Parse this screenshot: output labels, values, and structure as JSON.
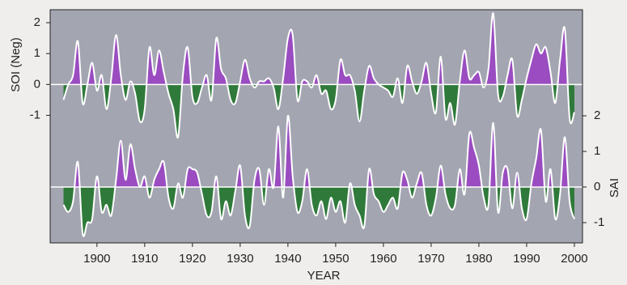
{
  "chart_data": {
    "type": "area",
    "x_label": "YEAR",
    "xlim": [
      1890.2,
      2001.7
    ],
    "xticks": [
      1900,
      1910,
      1920,
      1930,
      1940,
      1950,
      1960,
      1970,
      1980,
      1990,
      2000
    ],
    "ylim": [
      -5.13,
      2.42
    ],
    "yticks": [
      -1,
      0,
      1,
      2
    ],
    "y2lim": [
      -1.57,
      4.98
    ],
    "y2ticks": [
      -1,
      0,
      1,
      2
    ],
    "background": "#a3a6b1",
    "x": [
      1893,
      1894,
      1895,
      1896,
      1897,
      1898,
      1899,
      1900,
      1901,
      1902,
      1903,
      1904,
      1905,
      1906,
      1907,
      1908,
      1909,
      1910,
      1911,
      1912,
      1913,
      1914,
      1915,
      1916,
      1917,
      1918,
      1919,
      1920,
      1921,
      1922,
      1923,
      1924,
      1925,
      1926,
      1927,
      1928,
      1929,
      1930,
      1931,
      1932,
      1933,
      1934,
      1935,
      1936,
      1937,
      1938,
      1939,
      1940,
      1941,
      1942,
      1943,
      1944,
      1945,
      1946,
      1947,
      1948,
      1949,
      1950,
      1951,
      1952,
      1953,
      1954,
      1955,
      1956,
      1957,
      1958,
      1959,
      1960,
      1961,
      1962,
      1963,
      1964,
      1965,
      1966,
      1967,
      1968,
      1969,
      1970,
      1971,
      1972,
      1973,
      1974,
      1975,
      1976,
      1977,
      1978,
      1979,
      1980,
      1981,
      1982,
      1983,
      1984,
      1985,
      1986,
      1987,
      1988,
      1989,
      1990,
      1991,
      1992,
      1993,
      1994,
      1995,
      1996,
      1997,
      1998,
      1999,
      2000
    ],
    "series": [
      {
        "name": "SOI (Neg)",
        "axis": "y",
        "color": "#ffffff",
        "positive_color": "#9a4cc0",
        "negative_color": "#2f7a3a",
        "values": [
          -0.5,
          0,
          0.3,
          1.4,
          -0.6,
          0,
          0.7,
          -0.2,
          0.3,
          -0.8,
          0.2,
          1.6,
          0.3,
          -0.5,
          0.1,
          -0.3,
          -1.2,
          -0.8,
          1.2,
          0.3,
          1.1,
          0.4,
          -0.3,
          -0.8,
          -1.7,
          0.3,
          1.2,
          -0.4,
          -0.6,
          -0.1,
          0.3,
          -0.5,
          1.5,
          0.5,
          0.2,
          -0.5,
          -0.6,
          0.1,
          0.8,
          0.2,
          -0.1,
          0.1,
          0.1,
          0.2,
          -0.1,
          -0.8,
          0.2,
          1.5,
          1.6,
          -0.5,
          0.1,
          0.1,
          -0.1,
          0.3,
          -0.3,
          -0.2,
          -0.8,
          -0.5,
          0.8,
          0.3,
          0.3,
          -0.2,
          -1.2,
          -0.2,
          0.6,
          0.2,
          0,
          -0.1,
          -0.2,
          -0.4,
          0.2,
          -0.6,
          0.6,
          0.1,
          -0.3,
          0.1,
          0.7,
          -0.3,
          -0.9,
          0.9,
          -1.1,
          -0.6,
          -1.3,
          0.1,
          1.1,
          0.2,
          0.3,
          0.4,
          -0.1,
          0.5,
          2.3,
          -0.3,
          -0.4,
          0.3,
          0.8,
          -1.0,
          -0.5,
          0.2,
          0.8,
          1.3,
          1.0,
          1.2,
          0.4,
          -0.6,
          0.8,
          1.8,
          -1.1,
          -0.9
        ]
      },
      {
        "name": "SAI",
        "axis": "y2",
        "color": "#ffffff",
        "positive_color": "#9a4cc0",
        "negative_color": "#2f7a3a",
        "values": [
          -0.5,
          -0.7,
          -0.4,
          0.7,
          -1.3,
          -1.0,
          -0.9,
          0.3,
          -0.7,
          -0.5,
          -0.8,
          0.2,
          1.3,
          0.2,
          1.2,
          0.5,
          0,
          0.3,
          -0.3,
          0.2,
          0.5,
          0.7,
          -0.3,
          -0.6,
          0.1,
          -0.3,
          0.5,
          0.5,
          0.4,
          -0.2,
          -0.8,
          -0.7,
          0.3,
          -0.9,
          -0.4,
          -0.8,
          -0.1,
          0.6,
          -0.8,
          -1.1,
          0.2,
          0.5,
          -0.5,
          0.5,
          0,
          1.7,
          -0.3,
          2.0,
          0.3,
          -0.7,
          -0.4,
          0.5,
          -0.5,
          -0.8,
          -0.4,
          -0.9,
          -0.3,
          -0.7,
          -0.4,
          -1.0,
          0.1,
          -0.5,
          -0.8,
          -1.1,
          0.5,
          -0.2,
          -0.4,
          -0.7,
          -0.5,
          -0.3,
          -0.6,
          0.4,
          0.2,
          -0.3,
          0.1,
          0.4,
          -0.5,
          -0.8,
          -0.3,
          0.6,
          -0.2,
          -0.6,
          -0.5,
          0.5,
          -0.2,
          1.5,
          1.1,
          0.6,
          -0.3,
          -0.5,
          1.8,
          -0.7,
          0.4,
          0.5,
          -0.6,
          0.4,
          -0.6,
          -0.9,
          0.1,
          0.8,
          1.6,
          -0.4,
          0.5,
          -0.9,
          -0.2,
          1.4,
          -0.4,
          -0.9
        ]
      }
    ]
  }
}
